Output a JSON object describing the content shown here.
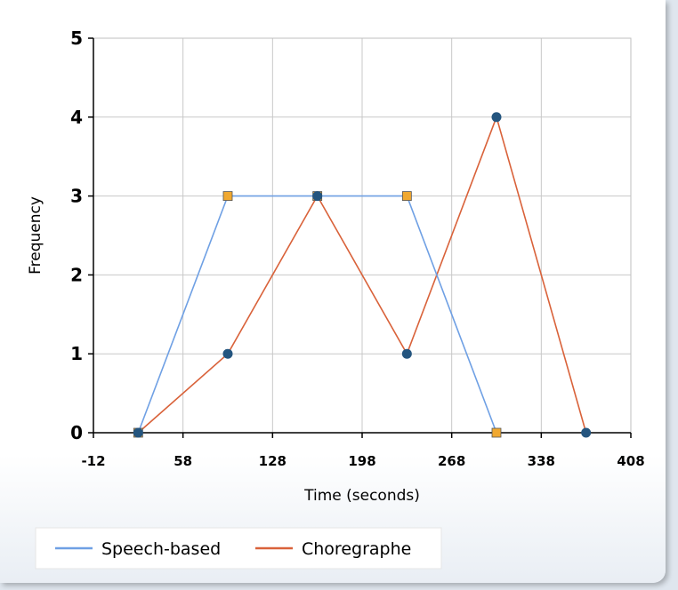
{
  "chart_data": {
    "type": "line",
    "title": "",
    "xlabel": "Time (seconds)",
    "ylabel": "Frequency",
    "xlim": [
      -12,
      408
    ],
    "ylim": [
      0,
      5
    ],
    "xticks": [
      -12,
      58,
      128,
      198,
      268,
      338,
      408
    ],
    "yticks": [
      0,
      1,
      2,
      3,
      4,
      5
    ],
    "grid": true,
    "legend_position": "bottom-left",
    "series": [
      {
        "name": "Speech-based",
        "color": "#6fa0e4",
        "marker": "square",
        "marker_color": "#f0a830",
        "points": [
          [
            23,
            0
          ],
          [
            93,
            3
          ],
          [
            163,
            3
          ],
          [
            233,
            3
          ],
          [
            303,
            0
          ]
        ]
      },
      {
        "name": "Choregraphe",
        "color": "#d9623a",
        "marker": "circle",
        "marker_color": "#24557f",
        "points": [
          [
            23,
            0
          ],
          [
            93,
            1
          ],
          [
            163,
            3
          ],
          [
            233,
            1
          ],
          [
            303,
            4
          ],
          [
            373,
            0
          ]
        ]
      }
    ]
  }
}
